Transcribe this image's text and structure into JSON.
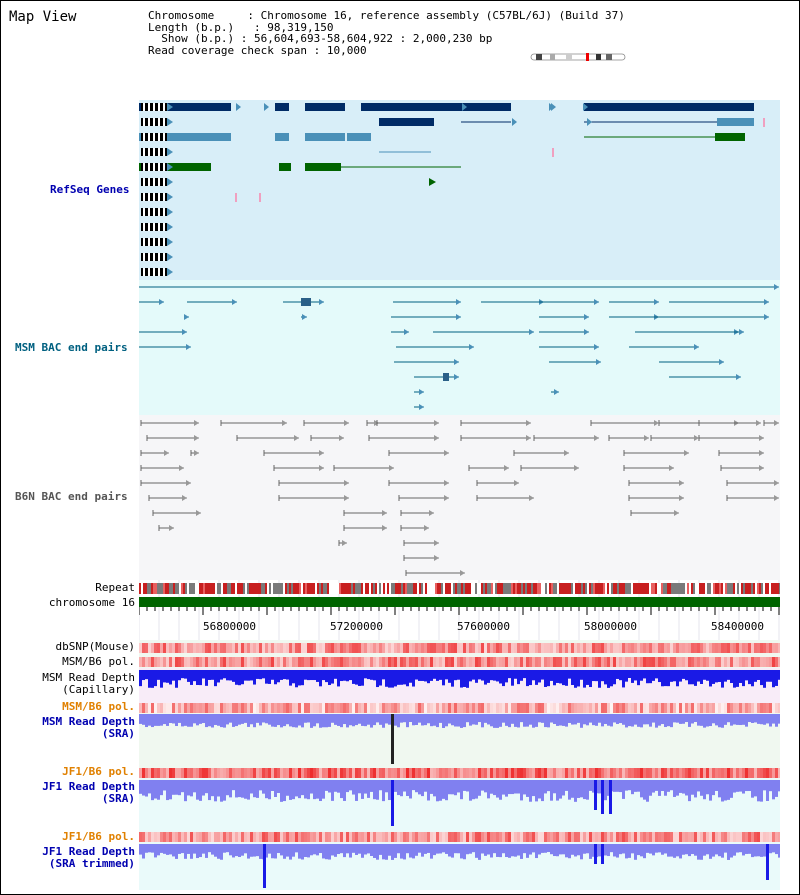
{
  "view": {
    "title": "Map View",
    "chromosome_label": "Chromosome",
    "chromosome_value": "Chromosome 16, reference assembly (C57BL/6J) (Build 37)",
    "length_label": "Length (b.p.)",
    "length_value": "98,319,150",
    "show_label": "Show (b.p.)",
    "show_value": "56,604,693-58,604,922 : 2,000,230 bp",
    "span_label": "Read coverage check span",
    "span_value": "10,000"
  },
  "tracks": {
    "refseq": "RefSeq Genes",
    "msm_bac": "MSM BAC end pairs",
    "b6n_bac": "B6N BAC end pairs",
    "repeat": "Repeat",
    "chrom": "chromosome 16",
    "dbsnp": "dbSNP(Mouse)",
    "msm_pol_1": "MSM/B6 pol.",
    "msm_depth_cap_1": "MSM Read Depth",
    "msm_depth_cap_2": "(Capillary)",
    "msm_pol_2": "MSM/B6 pol.",
    "msm_depth_sra_1": "MSM Read Depth",
    "msm_depth_sra_2": "(SRA)",
    "jf1_pol_1": "JF1/B6 pol.",
    "jf1_depth_sra_1": "JF1 Read Depth",
    "jf1_depth_sra_2": "(SRA)",
    "jf1_pol_2": "JF1/B6 pol.",
    "jf1_depth_trim_1": "JF1 Read Depth",
    "jf1_depth_trim_2": "(SRA trimmed)"
  },
  "axis": {
    "ticks": [
      "56800000",
      "57200000",
      "57600000",
      "58000000",
      "58400000"
    ]
  },
  "colors": {
    "refseq_bg": "#d8eef8",
    "msm_bg": "#e4fafa",
    "b6n_bg": "#f6f6f8",
    "gene_dark": "#002b66",
    "gene_mid": "#4a90b8",
    "gene_green": "#006400",
    "label_blue": "#0000b0",
    "label_teal": "#006080",
    "label_orange": "#e08000",
    "depth_dark": "#1a1ae6",
    "depth_light": "#8080f0"
  }
}
